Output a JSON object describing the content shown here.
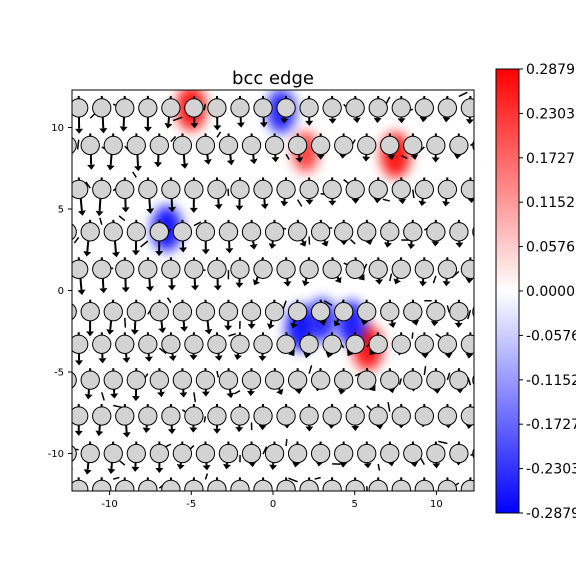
{
  "chart_data": {
    "type": "heatmap",
    "title": "bcc edge",
    "xlabel": "",
    "ylabel": "",
    "xlim": [
      -12.3,
      12.3
    ],
    "ylim": [
      -12.3,
      12.3
    ],
    "x_ticks": [
      -10,
      -5,
      0,
      5,
      10
    ],
    "y_ticks": [
      -10,
      -5,
      0,
      5,
      10
    ],
    "colorbar": {
      "cmap": "bwr",
      "vmin": -0.2879,
      "vmax": 0.2879,
      "tick_values": [
        0.2879,
        0.2303,
        0.1727,
        0.1152,
        0.0576,
        0.0,
        -0.0576,
        -0.1152,
        -0.1727,
        -0.2303,
        -0.2879
      ],
      "tick_labels": [
        "0.2879",
        "0.2303",
        "0.1727",
        "0.1152",
        "0.0576",
        "0.0000",
        "-0.0576",
        "-0.1152",
        "-0.1727",
        "-0.2303",
        "-0.2879"
      ]
    },
    "hotspots": [
      {
        "x": -5.0,
        "y": 11.2,
        "value": 0.29
      },
      {
        "x": 7.5,
        "y": 8.3,
        "value": 0.29
      },
      {
        "x": 5.8,
        "y": -3.5,
        "value": 0.29
      },
      {
        "x": 2.0,
        "y": 8.5,
        "value": 0.2
      },
      {
        "x": -6.5,
        "y": 3.8,
        "value": -0.29
      },
      {
        "x": 0.5,
        "y": 11.0,
        "value": -0.26
      },
      {
        "x": 1.7,
        "y": -2.3,
        "value": -0.29
      },
      {
        "x": 4.8,
        "y": -2.0,
        "value": -0.27
      },
      {
        "x": 3.0,
        "y": -1.8,
        "value": -0.24
      }
    ],
    "atom_rows_y": [
      11.2,
      8.9,
      6.2,
      3.6,
      1.3,
      -1.3,
      -3.3,
      -5.5,
      -7.7,
      -10.0,
      -12.2
    ],
    "atom_spacing_x": 1.41,
    "core": {
      "x": 3.5,
      "y": -1.5
    }
  },
  "colors": {
    "positive": "#ff0000",
    "negative": "#0000ff",
    "zero": "#ffffff",
    "atom_fill": "#d3d3d3",
    "atom_edge": "#000000",
    "arrow": "#000000"
  }
}
